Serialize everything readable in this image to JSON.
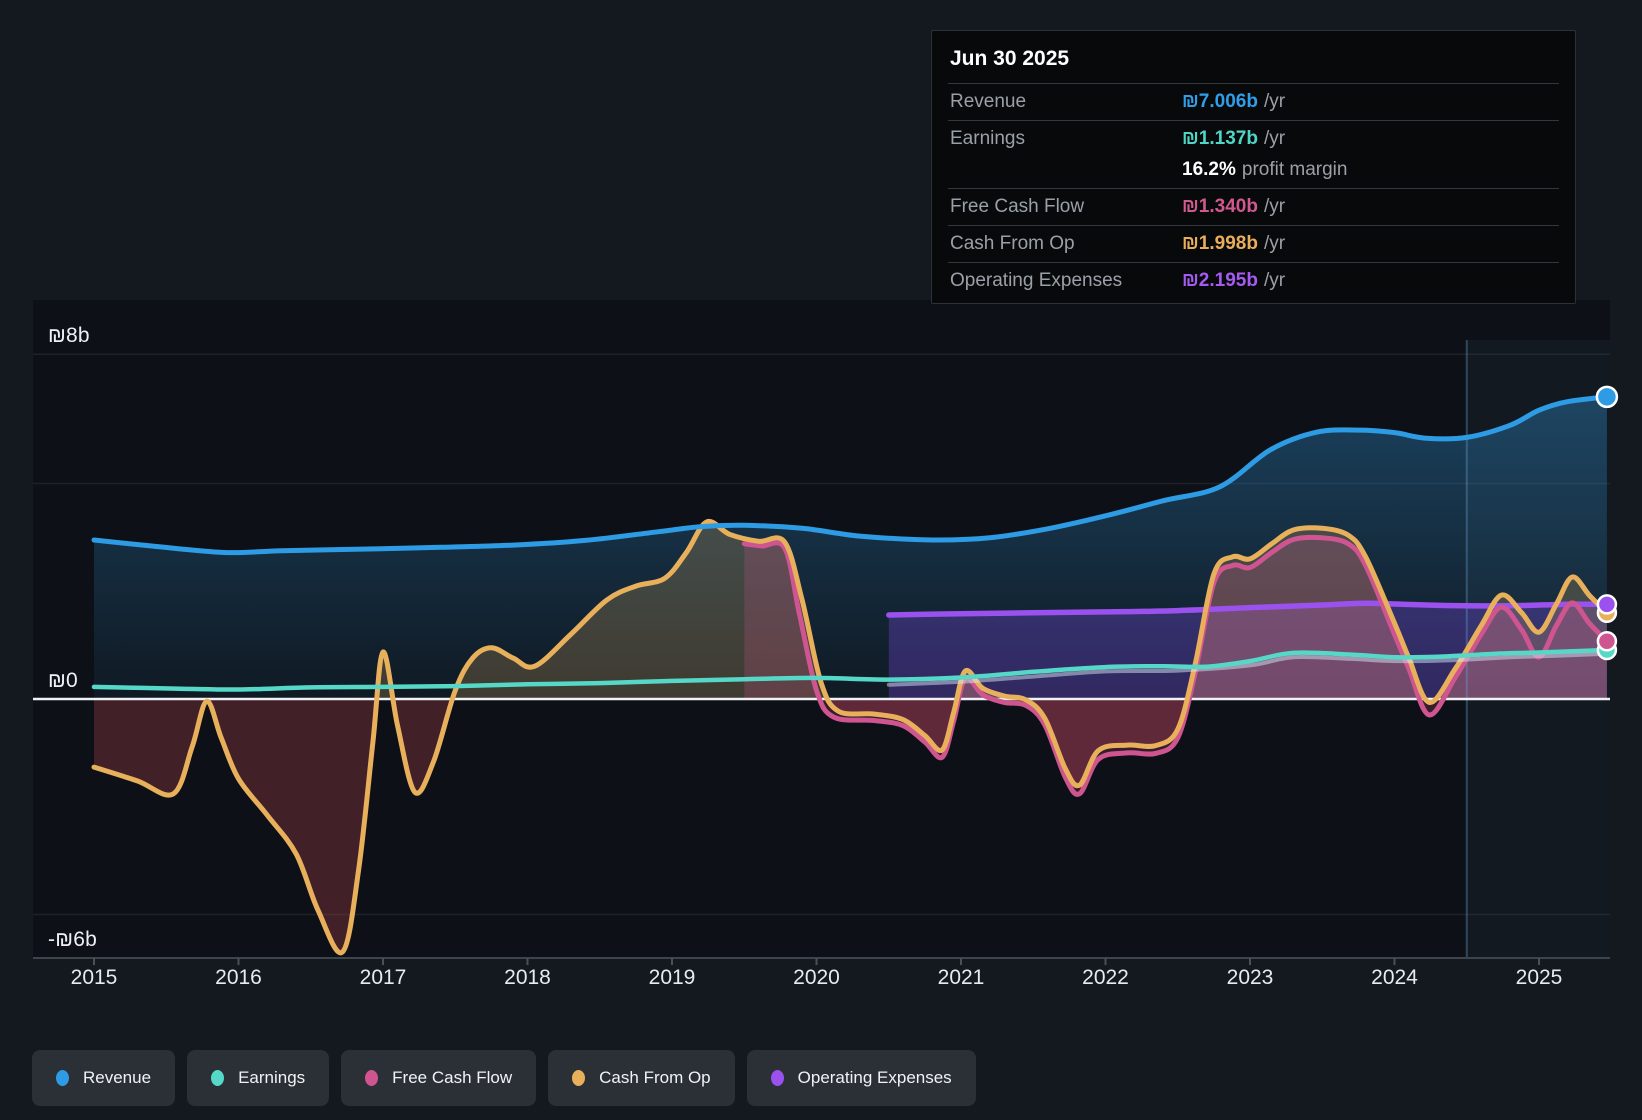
{
  "tooltip": {
    "date": "Jun 30 2025",
    "rows": [
      {
        "label": "Revenue",
        "value": "₪7.006b",
        "suffix": "/yr",
        "color": "#2f9fe9"
      },
      {
        "label": "Earnings",
        "value": "₪1.137b",
        "suffix": "/yr",
        "color": "#4fd6c6"
      },
      {
        "label": "",
        "value": "16.2%",
        "suffix": "profit margin",
        "color": "#ffffff"
      },
      {
        "label": "Free Cash Flow",
        "value": "₪1.340b",
        "suffix": "/yr",
        "color": "#d1598f"
      },
      {
        "label": "Cash From Op",
        "value": "₪1.998b",
        "suffix": "/yr",
        "color": "#e9ae5a"
      },
      {
        "label": "Operating Expenses",
        "value": "₪2.195b",
        "suffix": "/yr",
        "color": "#a55bf2"
      }
    ]
  },
  "legend": [
    {
      "label": "Revenue",
      "color": "#2e9be5"
    },
    {
      "label": "Earnings",
      "color": "#55d8c7"
    },
    {
      "label": "Free Cash Flow",
      "color": "#ce5590"
    },
    {
      "label": "Cash From Op",
      "color": "#e9b05c"
    },
    {
      "label": "Operating Expenses",
      "color": "#9b51ee"
    }
  ],
  "chart_data": {
    "type": "area",
    "x_unit": "year",
    "xlim": [
      2015,
      2025.47
    ],
    "ylim": [
      -6,
      8
    ],
    "currency_symbol": "₪",
    "y_axis_labels": [
      {
        "text": "₪8b",
        "value": 8
      },
      {
        "text": "₪0",
        "value": 0
      },
      {
        "text": "-₪6b",
        "value": -6
      }
    ],
    "x_axis_labels": [
      2015,
      2016,
      2017,
      2018,
      2019,
      2020,
      2021,
      2022,
      2023,
      2024,
      2025
    ],
    "minor_gridlines": [
      8,
      5,
      -5
    ],
    "zero_line": 0,
    "bottom_axis_value": -6,
    "divider_year": 2024.5,
    "series": [
      {
        "name": "Revenue",
        "color": "#2e9be5",
        "line_width": 5,
        "area": "gradient-blue",
        "end_marker_radius": 10,
        "points": [
          [
            2015,
            3.69
          ],
          [
            2015.4,
            3.55
          ],
          [
            2015.9,
            3.4
          ],
          [
            2016.3,
            3.44
          ],
          [
            2016.9,
            3.48
          ],
          [
            2017.4,
            3.52
          ],
          [
            2017.9,
            3.57
          ],
          [
            2018.4,
            3.68
          ],
          [
            2018.9,
            3.88
          ],
          [
            2019.2,
            4.0
          ],
          [
            2019.5,
            4.03
          ],
          [
            2019.9,
            3.96
          ],
          [
            2020.3,
            3.78
          ],
          [
            2020.8,
            3.69
          ],
          [
            2021.2,
            3.74
          ],
          [
            2021.6,
            3.95
          ],
          [
            2022.0,
            4.25
          ],
          [
            2022.4,
            4.6
          ],
          [
            2022.79,
            4.92
          ],
          [
            2023.14,
            5.78
          ],
          [
            2023.46,
            6.19
          ],
          [
            2023.76,
            6.24
          ],
          [
            2024.0,
            6.18
          ],
          [
            2024.22,
            6.05
          ],
          [
            2024.5,
            6.07
          ],
          [
            2024.8,
            6.35
          ],
          [
            2025.0,
            6.7
          ],
          [
            2025.2,
            6.9
          ],
          [
            2025.47,
            7.01
          ]
        ]
      },
      {
        "name": "Operating Expenses",
        "color": "#9b51ee",
        "line_width": 5.5,
        "area": "purple",
        "end_marker_radius": 9,
        "points": [
          [
            2020.5,
            1.95
          ],
          [
            2021,
            1.98
          ],
          [
            2021.5,
            2.0
          ],
          [
            2022,
            2.02
          ],
          [
            2022.5,
            2.05
          ],
          [
            2023,
            2.12
          ],
          [
            2023.5,
            2.18
          ],
          [
            2023.8,
            2.22
          ],
          [
            2024.05,
            2.2
          ],
          [
            2024.35,
            2.17
          ],
          [
            2024.65,
            2.16
          ],
          [
            2024.9,
            2.17
          ],
          [
            2025.2,
            2.2
          ],
          [
            2025.47,
            2.195
          ]
        ]
      },
      {
        "name": "Free Cash Flow",
        "color": "#ce5590",
        "line_width": 5,
        "area": "pink",
        "end_marker_radius": 9,
        "points": [
          [
            2019.5,
            3.6
          ],
          [
            2019.62,
            3.55
          ],
          [
            2019.78,
            3.5
          ],
          [
            2019.88,
            2.0
          ],
          [
            2020.0,
            0.2
          ],
          [
            2020.12,
            -0.42
          ],
          [
            2020.4,
            -0.5
          ],
          [
            2020.6,
            -0.62
          ],
          [
            2020.75,
            -1.0
          ],
          [
            2020.87,
            -1.35
          ],
          [
            2020.95,
            -0.5
          ],
          [
            2021.03,
            0.48
          ],
          [
            2021.15,
            0.1
          ],
          [
            2021.3,
            -0.08
          ],
          [
            2021.45,
            -0.15
          ],
          [
            2021.58,
            -0.6
          ],
          [
            2021.72,
            -1.8
          ],
          [
            2021.82,
            -2.2
          ],
          [
            2021.95,
            -1.4
          ],
          [
            2022.15,
            -1.25
          ],
          [
            2022.35,
            -1.26
          ],
          [
            2022.5,
            -0.9
          ],
          [
            2022.62,
            0.6
          ],
          [
            2022.75,
            2.7
          ],
          [
            2022.88,
            3.1
          ],
          [
            2023.0,
            3.05
          ],
          [
            2023.15,
            3.4
          ],
          [
            2023.3,
            3.7
          ],
          [
            2023.5,
            3.74
          ],
          [
            2023.68,
            3.6
          ],
          [
            2023.8,
            3.1
          ],
          [
            2024.0,
            1.5
          ],
          [
            2024.1,
            0.7
          ],
          [
            2024.24,
            -0.37
          ],
          [
            2024.42,
            0.5
          ],
          [
            2024.6,
            1.5
          ],
          [
            2024.74,
            2.13
          ],
          [
            2024.88,
            1.6
          ],
          [
            2025.0,
            0.97
          ],
          [
            2025.12,
            1.7
          ],
          [
            2025.23,
            2.23
          ],
          [
            2025.35,
            1.75
          ],
          [
            2025.47,
            1.34
          ]
        ]
      },
      {
        "name": "Cash From Op",
        "color": "#e9b05c",
        "line_width": 5,
        "area": "orange",
        "end_marker_radius": 9,
        "points": [
          [
            2015,
            -1.58
          ],
          [
            2015.3,
            -1.9
          ],
          [
            2015.55,
            -2.2
          ],
          [
            2015.68,
            -1.1
          ],
          [
            2015.78,
            -0.05
          ],
          [
            2015.88,
            -0.9
          ],
          [
            2016.0,
            -1.85
          ],
          [
            2016.2,
            -2.7
          ],
          [
            2016.4,
            -3.6
          ],
          [
            2016.55,
            -4.9
          ],
          [
            2016.72,
            -5.87
          ],
          [
            2016.83,
            -4.0
          ],
          [
            2016.93,
            -1.0
          ],
          [
            2017.0,
            1.09
          ],
          [
            2017.1,
            -0.6
          ],
          [
            2017.22,
            -2.16
          ],
          [
            2017.35,
            -1.45
          ],
          [
            2017.5,
            0.2
          ],
          [
            2017.62,
            0.95
          ],
          [
            2017.75,
            1.19
          ],
          [
            2017.9,
            0.95
          ],
          [
            2018.05,
            0.76
          ],
          [
            2018.3,
            1.5
          ],
          [
            2018.55,
            2.3
          ],
          [
            2018.75,
            2.62
          ],
          [
            2018.95,
            2.8
          ],
          [
            2019.1,
            3.4
          ],
          [
            2019.24,
            4.11
          ],
          [
            2019.4,
            3.82
          ],
          [
            2019.6,
            3.66
          ],
          [
            2019.78,
            3.64
          ],
          [
            2019.9,
            2.3
          ],
          [
            2020.03,
            0.4
          ],
          [
            2020.15,
            -0.28
          ],
          [
            2020.4,
            -0.35
          ],
          [
            2020.6,
            -0.48
          ],
          [
            2020.75,
            -0.85
          ],
          [
            2020.87,
            -1.18
          ],
          [
            2020.95,
            -0.3
          ],
          [
            2021.03,
            0.65
          ],
          [
            2021.15,
            0.25
          ],
          [
            2021.3,
            0.07
          ],
          [
            2021.45,
            -0.02
          ],
          [
            2021.58,
            -0.45
          ],
          [
            2021.72,
            -1.6
          ],
          [
            2021.82,
            -2.0
          ],
          [
            2021.95,
            -1.2
          ],
          [
            2022.15,
            -1.07
          ],
          [
            2022.35,
            -1.08
          ],
          [
            2022.5,
            -0.7
          ],
          [
            2022.62,
            0.8
          ],
          [
            2022.75,
            2.9
          ],
          [
            2022.88,
            3.3
          ],
          [
            2023.0,
            3.25
          ],
          [
            2023.15,
            3.6
          ],
          [
            2023.3,
            3.92
          ],
          [
            2023.5,
            3.96
          ],
          [
            2023.68,
            3.8
          ],
          [
            2023.8,
            3.3
          ],
          [
            2024.0,
            1.76
          ],
          [
            2024.1,
            0.95
          ],
          [
            2024.24,
            -0.08
          ],
          [
            2024.42,
            0.7
          ],
          [
            2024.6,
            1.7
          ],
          [
            2024.74,
            2.41
          ],
          [
            2024.88,
            2.0
          ],
          [
            2025.0,
            1.55
          ],
          [
            2025.12,
            2.2
          ],
          [
            2025.23,
            2.83
          ],
          [
            2025.35,
            2.4
          ],
          [
            2025.47,
            2.0
          ]
        ]
      },
      {
        "name": "Earnings (secondary)",
        "color": "rgba(213,229,241,0.5)",
        "line_width": 4,
        "area": "none",
        "end_marker_radius": 0,
        "points": [
          [
            2020.5,
            0.33
          ],
          [
            2021,
            0.4
          ],
          [
            2021.5,
            0.52
          ],
          [
            2022,
            0.64
          ],
          [
            2022.5,
            0.66
          ],
          [
            2023,
            0.78
          ],
          [
            2023.3,
            0.97
          ],
          [
            2023.7,
            0.93
          ],
          [
            2024,
            0.88
          ],
          [
            2024.4,
            0.9
          ],
          [
            2024.8,
            0.97
          ],
          [
            2025.1,
            1.0
          ],
          [
            2025.47,
            1.05
          ]
        ]
      },
      {
        "name": "Earnings",
        "color": "#55d8c7",
        "line_width": 4.5,
        "area": "none",
        "end_marker_radius": 9,
        "points": [
          [
            2015,
            0.28
          ],
          [
            2015.6,
            0.24
          ],
          [
            2016,
            0.22
          ],
          [
            2016.5,
            0.27
          ],
          [
            2017,
            0.28
          ],
          [
            2017.5,
            0.3
          ],
          [
            2018,
            0.34
          ],
          [
            2018.5,
            0.37
          ],
          [
            2019,
            0.42
          ],
          [
            2019.5,
            0.46
          ],
          [
            2020,
            0.49
          ],
          [
            2020.5,
            0.45
          ],
          [
            2021,
            0.5
          ],
          [
            2021.5,
            0.63
          ],
          [
            2022,
            0.74
          ],
          [
            2022.4,
            0.76
          ],
          [
            2022.7,
            0.75
          ],
          [
            2023,
            0.88
          ],
          [
            2023.3,
            1.07
          ],
          [
            2023.7,
            1.03
          ],
          [
            2024,
            0.97
          ],
          [
            2024.3,
            0.98
          ],
          [
            2024.7,
            1.05
          ],
          [
            2025,
            1.08
          ],
          [
            2025.47,
            1.137
          ]
        ]
      }
    ]
  },
  "colors": {
    "page_bg": "#14181f",
    "plot_bg": "#0d1117",
    "tooltip_bg": "#08090b",
    "chip_bg": "#2b2f36",
    "text_gray": "#9aa0a8",
    "zero_line": "#eef2f4"
  }
}
